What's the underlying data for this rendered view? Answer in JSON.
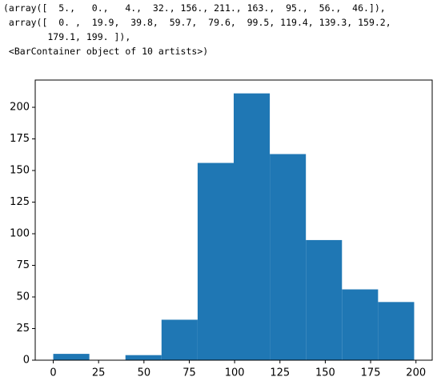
{
  "output_lines": [
    "(array([  5.,   0.,   4.,  32., 156., 211., 163.,  95.,  56.,  46.]),",
    " array([  0. ,  19.9,  39.8,  59.7,  79.6,  99.5, 119.4, 139.3, 159.2,",
    "        179.1, 199. ]),",
    " <BarContainer object of 10 artists>)"
  ],
  "chart_data": {
    "type": "histogram",
    "bins": [
      0,
      19.9,
      39.8,
      59.7,
      79.6,
      99.5,
      119.4,
      139.3,
      159.2,
      179.1,
      199
    ],
    "values": [
      5,
      0,
      4,
      32,
      156,
      211,
      163,
      95,
      56,
      46
    ],
    "color": "#1f77b4",
    "xlim": [
      -9.95,
      208.95
    ],
    "xticks": [
      0,
      25,
      50,
      75,
      100,
      125,
      150,
      175,
      200
    ],
    "ylim": [
      0,
      221.55
    ],
    "yticks": [
      0,
      25,
      50,
      75,
      100,
      125,
      150,
      175,
      200
    ]
  }
}
